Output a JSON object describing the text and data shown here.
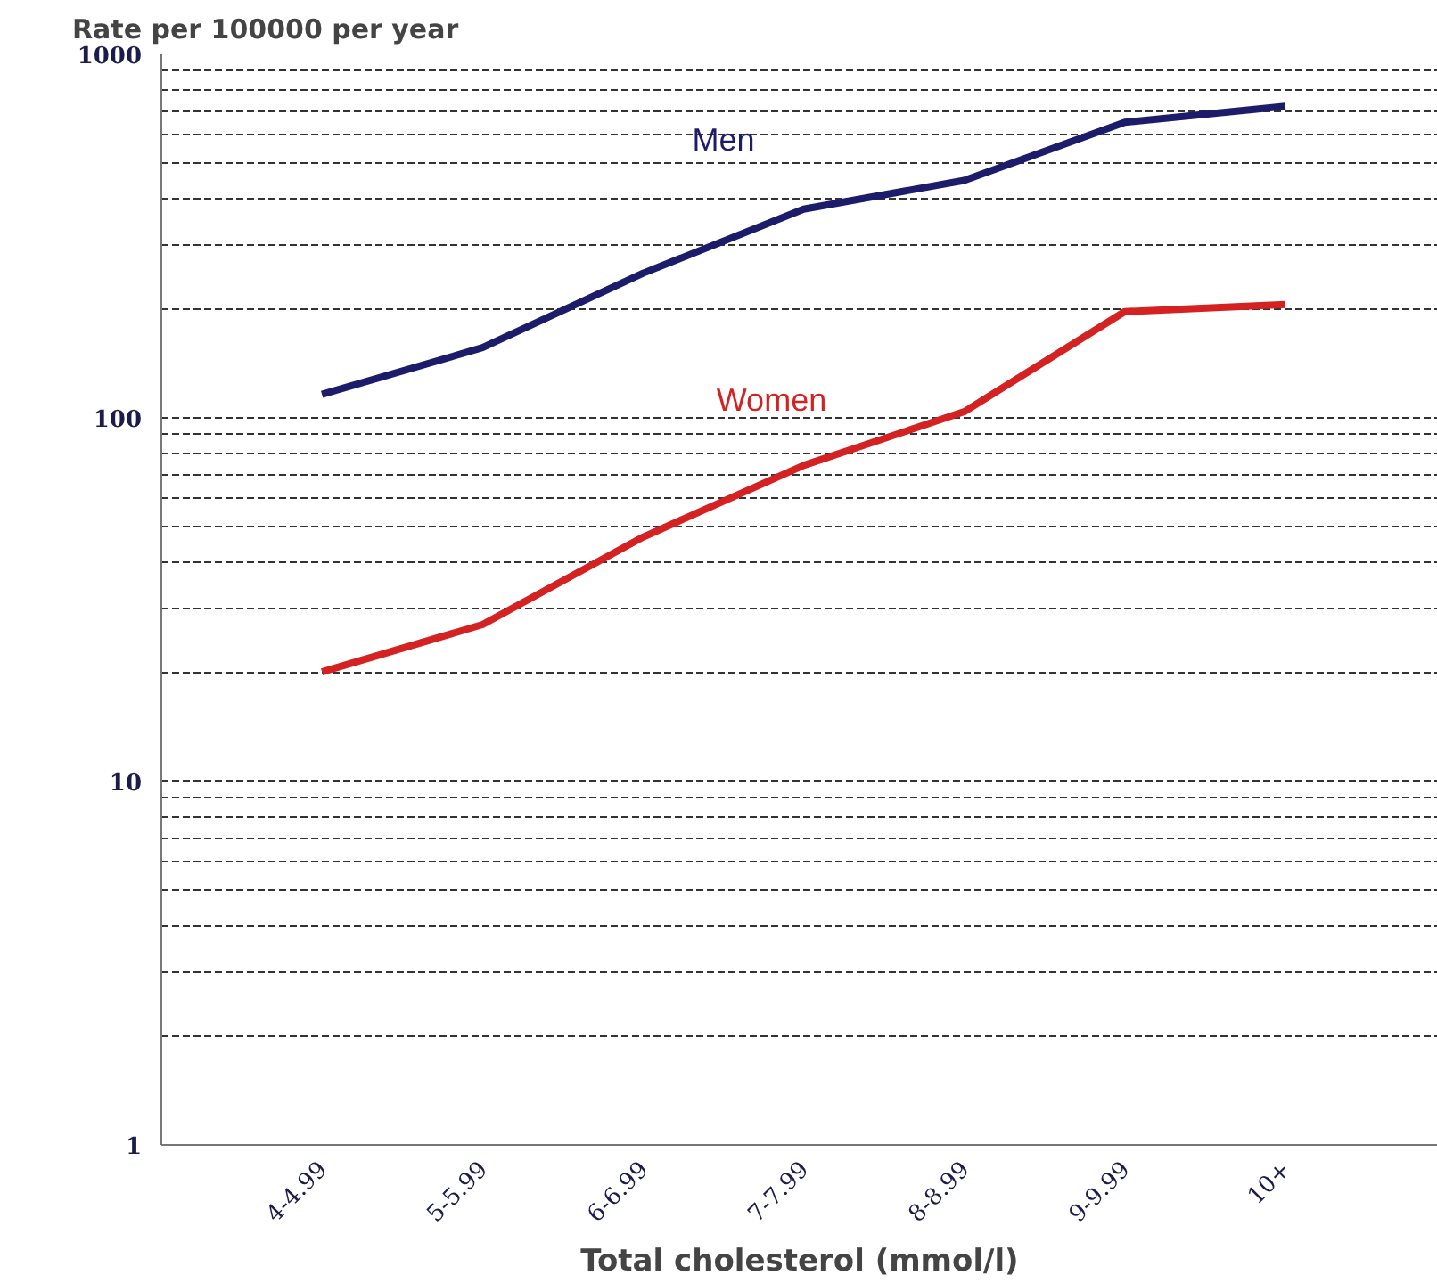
{
  "chart_data": {
    "type": "line",
    "ylabel": "Rate per 100000 per year",
    "xlabel": "Total cholesterol (mmol/l)",
    "categories": [
      "4-4.99",
      "5-5.99",
      "6-6.99",
      "7-7.99",
      "8-8.99",
      "9-9.99",
      "10+"
    ],
    "series": [
      {
        "name": "Men",
        "color": "#1c1c6b",
        "values": [
          116,
          156,
          250,
          375,
          450,
          650,
          720
        ]
      },
      {
        "name": "Women",
        "color": "#d42222",
        "values": [
          20,
          27,
          47,
          74,
          104,
          196,
          205
        ]
      }
    ],
    "log": "y",
    "ylim": [
      1,
      1000
    ],
    "yticks": [
      1,
      {
        "value": 2,
        "label": null
      },
      {
        "value": 3,
        "label": null
      },
      {
        "value": 4,
        "label": null
      },
      {
        "value": 5,
        "label": null
      },
      {
        "value": 6,
        "label": null
      },
      {
        "value": 7,
        "label": null
      },
      {
        "value": 8,
        "label": null
      },
      {
        "value": 9,
        "label": null
      },
      10,
      {
        "value": 20,
        "label": null
      },
      {
        "value": 30,
        "label": null
      },
      {
        "value": 40,
        "label": null
      },
      {
        "value": 50,
        "label": null
      },
      {
        "value": 60,
        "label": null
      },
      {
        "value": 70,
        "label": null
      },
      {
        "value": 80,
        "label": null
      },
      {
        "value": 90,
        "label": null
      },
      100,
      {
        "value": 200,
        "label": null
      },
      {
        "value": 300,
        "label": null
      },
      {
        "value": 400,
        "label": null
      },
      {
        "value": 500,
        "label": null
      },
      {
        "value": 600,
        "label": null
      },
      {
        "value": 700,
        "label": null
      },
      {
        "value": 800,
        "label": null
      },
      {
        "value": 900,
        "label": null
      },
      1000
    ],
    "grid": "y",
    "legend": false,
    "marker": "none",
    "line_style": "solid"
  }
}
